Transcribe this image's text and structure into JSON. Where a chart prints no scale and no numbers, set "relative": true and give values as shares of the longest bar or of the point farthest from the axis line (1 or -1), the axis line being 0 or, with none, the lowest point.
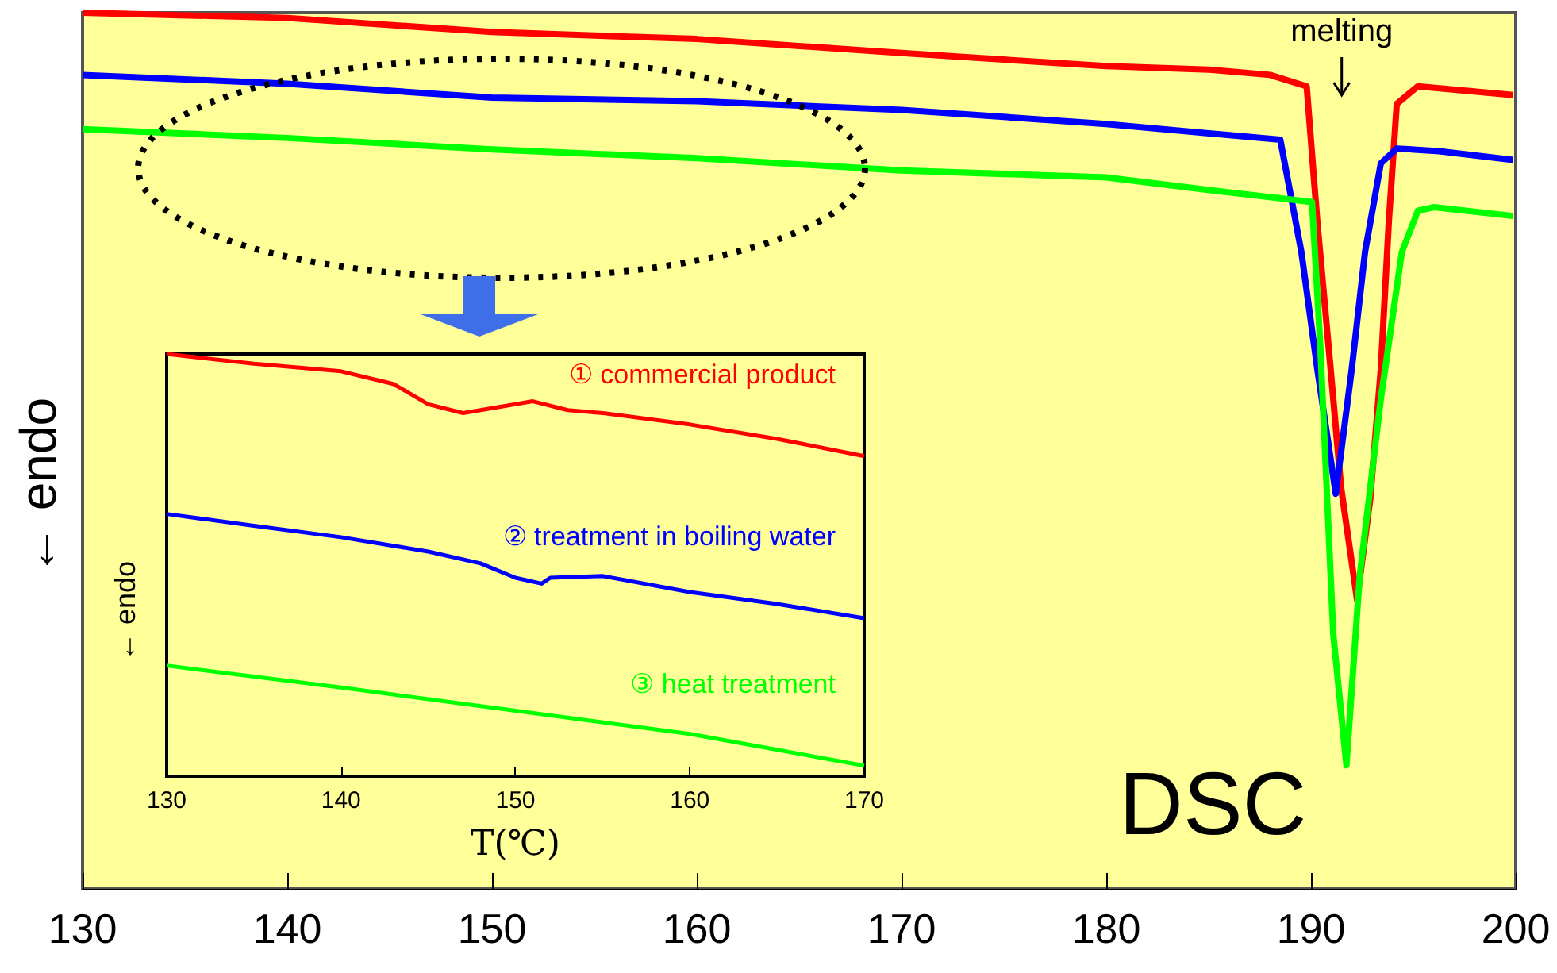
{
  "chart_data": [
    {
      "type": "line",
      "ylabel": "← endo",
      "annotations": [
        "melting",
        "DSC"
      ],
      "relative": true,
      "tick_labels": "x",
      "grid": false,
      "legend": false,
      "marker": "none",
      "line_style": "solid",
      "xlim": [
        130,
        200
      ],
      "xticks": [
        130,
        140,
        150,
        160,
        170,
        180,
        190,
        200
      ],
      "series": [
        {
          "color": "#ff0000",
          "x": [
            130,
            140,
            150,
            160,
            170,
            180,
            185,
            188,
            189.79,
            190.31,
            190.96,
            191.47,
            192.25,
            192.89,
            193.41,
            193.8,
            194.19,
            195.22,
            199.87
          ],
          "values": [
            1.0,
            0.994,
            0.978,
            0.97,
            0.954,
            0.939,
            0.935,
            0.929,
            0.916,
            0.761,
            0.593,
            0.458,
            0.33,
            0.444,
            0.593,
            0.761,
            0.896,
            0.916,
            0.906
          ]
        },
        {
          "color": "#0000ff",
          "x": [
            130,
            140,
            150,
            160,
            170,
            180,
            188.5,
            189.53,
            190.31,
            191.21,
            191.99,
            192.64,
            193.41,
            194.19,
            196.26,
            199.87
          ],
          "values": [
            0.929,
            0.919,
            0.903,
            0.899,
            0.889,
            0.873,
            0.855,
            0.727,
            0.593,
            0.451,
            0.593,
            0.727,
            0.828,
            0.845,
            0.842,
            0.832
          ]
        },
        {
          "color": "#00ff00",
          "x": [
            130,
            140,
            150,
            160,
            170,
            180,
            184.9,
            190.05,
            190.44,
            191.09,
            191.73,
            192.38,
            193.41,
            194.44,
            195.22,
            196.0,
            199.87
          ],
          "values": [
            0.867,
            0.857,
            0.844,
            0.834,
            0.82,
            0.812,
            0.798,
            0.784,
            0.626,
            0.29,
            0.141,
            0.357,
            0.559,
            0.727,
            0.774,
            0.778,
            0.768
          ]
        }
      ]
    },
    {
      "type": "line",
      "ylabel": "← endo",
      "xlabel": "T(℃)",
      "relative": true,
      "tick_labels": "x",
      "grid": false,
      "legend": false,
      "marker": "none",
      "line_style": "solid",
      "xlim": [
        130,
        170
      ],
      "xticks": [
        130,
        140,
        150,
        160,
        170
      ],
      "series": [
        {
          "name": "① commercial product",
          "color": "#ff0000",
          "x": [
            130,
            135,
            140,
            143,
            145,
            147,
            149,
            151,
            153,
            155,
            160,
            165,
            170
          ],
          "values": [
            1.0,
            0.977,
            0.959,
            0.929,
            0.881,
            0.86,
            0.874,
            0.888,
            0.867,
            0.86,
            0.833,
            0.799,
            0.758
          ]
        },
        {
          "name": "② treatment in boiling water",
          "color": "#0000ff",
          "x": [
            130,
            135,
            140,
            145,
            148,
            150,
            151.5,
            152,
            155,
            160,
            165,
            170
          ],
          "values": [
            0.621,
            0.593,
            0.566,
            0.532,
            0.504,
            0.47,
            0.456,
            0.47,
            0.474,
            0.436,
            0.408,
            0.374
          ]
        },
        {
          "name": "③ heat treatment",
          "color": "#00ff00",
          "x": [
            130,
            140,
            150,
            160,
            170
          ],
          "values": [
            0.262,
            0.21,
            0.155,
            0.1,
            0.025
          ]
        }
      ]
    }
  ]
}
